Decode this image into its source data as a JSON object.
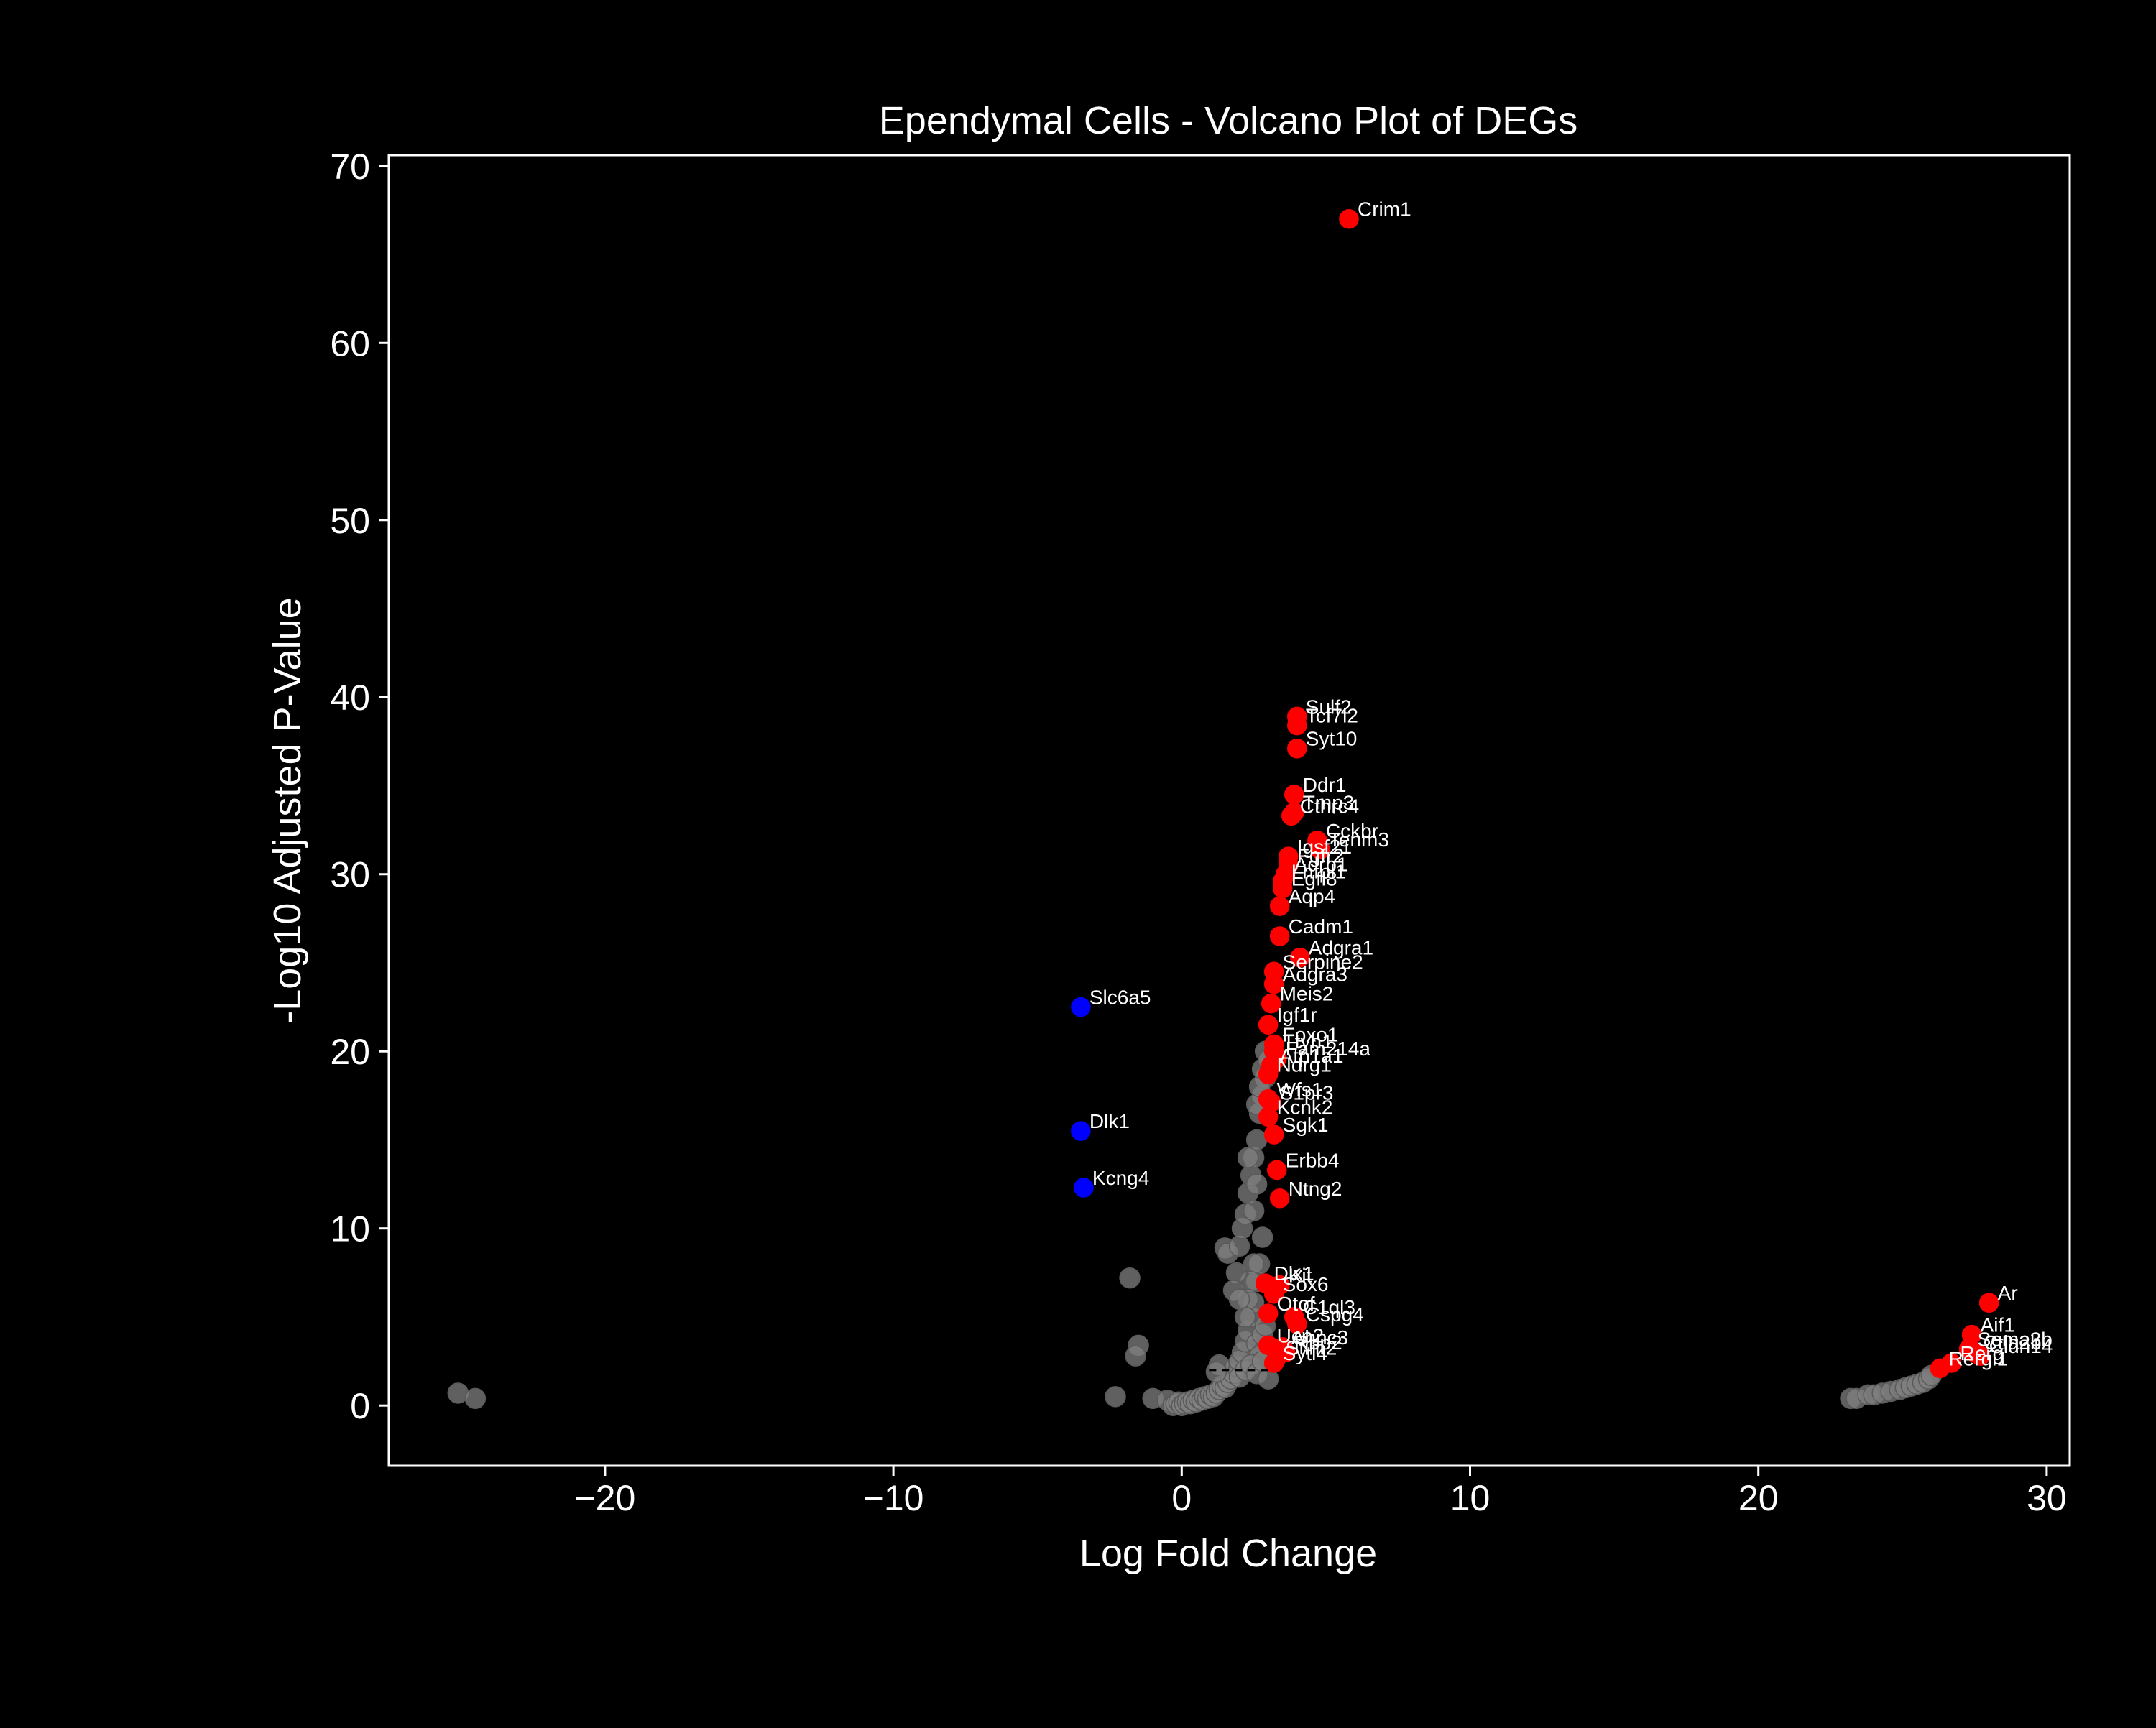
{
  "colors": {
    "background": "#000000",
    "axes": "#ffffff",
    "text": "#ffffff",
    "nonsignificant": "#808080",
    "upregulated": "#ff0000",
    "downregulated": "#0000ff",
    "threshold_line": "#000000"
  },
  "chart_data": {
    "type": "scatter",
    "title": "Ependymal Cells - Volcano Plot of DEGs",
    "xlabel": "Log Fold Change",
    "ylabel": "-Log10 Adjusted P-Value",
    "xlim": [
      -27.5,
      30.8
    ],
    "ylim": [
      -3.4,
      70.6
    ],
    "xticks": [
      -20,
      -10,
      0,
      10,
      20,
      30
    ],
    "xtick_labels": [
      "−20",
      "−10",
      "0",
      "10",
      "20",
      "30"
    ],
    "yticks": [
      0,
      10,
      20,
      30,
      40,
      50,
      60,
      70
    ],
    "ytick_labels": [
      "0",
      "10",
      "20",
      "30",
      "40",
      "50",
      "60",
      "70"
    ],
    "grid": false,
    "legend": "none",
    "threshold_line": {
      "x": [
        0.5,
        3.0
      ],
      "y": 2.0
    },
    "series": [
      {
        "category": "not significant",
        "color": "#808080",
        "points": [
          [
            -25.1,
            0.7
          ],
          [
            -24.5,
            0.4
          ],
          [
            -1.8,
            7.2
          ],
          [
            -1.5,
            3.4
          ],
          [
            -1.6,
            2.8
          ],
          [
            -2.3,
            0.5
          ],
          [
            -1.0,
            0.4
          ],
          [
            -0.5,
            0.3
          ],
          [
            -0.3,
            0.0
          ],
          [
            -0.2,
            0.1
          ],
          [
            -0.1,
            0.2
          ],
          [
            0.0,
            0.0
          ],
          [
            0.1,
            0.1
          ],
          [
            0.2,
            0.2
          ],
          [
            0.3,
            0.1
          ],
          [
            0.4,
            0.3
          ],
          [
            0.5,
            0.2
          ],
          [
            0.6,
            0.4
          ],
          [
            0.7,
            0.3
          ],
          [
            0.8,
            0.5
          ],
          [
            0.9,
            0.4
          ],
          [
            1.0,
            0.6
          ],
          [
            1.1,
            0.5
          ],
          [
            1.2,
            0.7
          ],
          [
            1.3,
            0.9
          ],
          [
            1.4,
            1.1
          ],
          [
            1.5,
            1.0
          ],
          [
            1.6,
            1.3
          ],
          [
            1.7,
            1.5
          ],
          [
            1.8,
            1.8
          ],
          [
            1.9,
            2.2
          ],
          [
            2.0,
            2.5
          ],
          [
            2.1,
            3.0
          ],
          [
            2.2,
            3.6
          ],
          [
            2.3,
            4.2
          ],
          [
            2.4,
            5.0
          ],
          [
            2.5,
            5.8
          ],
          [
            2.6,
            7.0
          ],
          [
            2.7,
            8.0
          ],
          [
            2.8,
            9.5
          ],
          [
            2.5,
            8.0
          ],
          [
            2.4,
            7.0
          ],
          [
            2.3,
            6.0
          ],
          [
            2.2,
            5.0
          ],
          [
            1.5,
            8.9
          ],
          [
            1.6,
            8.6
          ],
          [
            2.0,
            9.0
          ],
          [
            2.1,
            10.0
          ],
          [
            2.2,
            10.8
          ],
          [
            2.3,
            12.0
          ],
          [
            2.4,
            13.0
          ],
          [
            2.5,
            14.0
          ],
          [
            2.6,
            15.0
          ],
          [
            2.7,
            16.5
          ],
          [
            2.8,
            17.5
          ],
          [
            2.9,
            18.5
          ],
          [
            2.6,
            17.0
          ],
          [
            2.7,
            18.0
          ],
          [
            2.8,
            19.0
          ],
          [
            2.9,
            20.0
          ],
          [
            3.0,
            19.5
          ],
          [
            2.5,
            11.0
          ],
          [
            2.6,
            12.5
          ],
          [
            2.3,
            14.0
          ],
          [
            1.9,
            7.5
          ],
          [
            1.8,
            6.5
          ],
          [
            2.0,
            6.0
          ],
          [
            1.3,
            2.3
          ],
          [
            1.2,
            1.9
          ],
          [
            2.6,
            3.5
          ],
          [
            2.7,
            2.8
          ],
          [
            2.8,
            4.0
          ],
          [
            2.9,
            4.5
          ],
          [
            2.0,
            1.6
          ],
          [
            2.2,
            2.0
          ],
          [
            2.4,
            2.3
          ],
          [
            2.6,
            1.8
          ],
          [
            2.8,
            2.5
          ],
          [
            3.0,
            1.5
          ],
          [
            23.2,
            0.4
          ],
          [
            23.4,
            0.4
          ],
          [
            23.8,
            0.6
          ],
          [
            24.0,
            0.6
          ],
          [
            24.3,
            0.7
          ],
          [
            24.6,
            0.8
          ],
          [
            24.9,
            0.9
          ],
          [
            25.1,
            1.0
          ],
          [
            25.3,
            1.1
          ],
          [
            25.5,
            1.2
          ],
          [
            25.7,
            1.3
          ],
          [
            25.9,
            1.5
          ],
          [
            26.0,
            1.7
          ]
        ]
      },
      {
        "category": "upregulated",
        "color": "#ff0000",
        "points": [
          {
            "x": 5.8,
            "y": 67.0,
            "label": "Crim1"
          },
          {
            "x": 4.0,
            "y": 38.9,
            "label": "Sulf2"
          },
          {
            "x": 4.0,
            "y": 38.4,
            "label": "Tcf7l2"
          },
          {
            "x": 4.0,
            "y": 37.1,
            "label": "Syt10"
          },
          {
            "x": 3.9,
            "y": 34.5,
            "label": "Ddr1"
          },
          {
            "x": 3.9,
            "y": 33.5,
            "label": "Tmp3"
          },
          {
            "x": 3.8,
            "y": 33.3,
            "label": "Cthrc4"
          },
          {
            "x": 4.7,
            "y": 31.9,
            "label": "Cckbr"
          },
          {
            "x": 4.8,
            "y": 31.4,
            "label": "Tenm3"
          },
          {
            "x": 3.7,
            "y": 31.0,
            "label": "Igsf21"
          },
          {
            "x": 3.7,
            "y": 30.5,
            "label": "Fgfr2"
          },
          {
            "x": 3.6,
            "y": 30.0,
            "label": "Adrb1"
          },
          {
            "x": 3.5,
            "y": 29.6,
            "label": "Lhfpl1"
          },
          {
            "x": 3.5,
            "y": 29.2,
            "label": "Egfl8"
          },
          {
            "x": 3.4,
            "y": 28.2,
            "label": "Aqp4"
          },
          {
            "x": 3.4,
            "y": 26.5,
            "label": "Cadm1"
          },
          {
            "x": 4.1,
            "y": 25.3,
            "label": "Adgra1"
          },
          {
            "x": 3.2,
            "y": 24.5,
            "label": "Serpine2"
          },
          {
            "x": 3.2,
            "y": 23.8,
            "label": "Adgra3"
          },
          {
            "x": 3.1,
            "y": 22.7,
            "label": "Meis2"
          },
          {
            "x": 3.0,
            "y": 21.5,
            "label": "Igf1r"
          },
          {
            "x": 3.2,
            "y": 20.4,
            "label": "Foxo1"
          },
          {
            "x": 3.2,
            "y": 20.0,
            "label": "Ttyh1"
          },
          {
            "x": 3.3,
            "y": 19.6,
            "label": "Fam214a"
          },
          {
            "x": 3.1,
            "y": 19.2,
            "label": "Atp1a1"
          },
          {
            "x": 3.0,
            "y": 18.7,
            "label": "Ndrg1"
          },
          {
            "x": 3.0,
            "y": 17.3,
            "label": "Wfs1"
          },
          {
            "x": 3.1,
            "y": 17.1,
            "label": "S1pr3"
          },
          {
            "x": 3.0,
            "y": 16.3,
            "label": "Kcnk2"
          },
          {
            "x": 3.2,
            "y": 15.3,
            "label": "Sgk1"
          },
          {
            "x": 3.3,
            "y": 13.3,
            "label": "Erbb4"
          },
          {
            "x": 3.4,
            "y": 11.7,
            "label": "Ntng2"
          },
          {
            "x": 2.9,
            "y": 6.9,
            "label": "Dlx1"
          },
          {
            "x": 3.4,
            "y": 6.8,
            "label": "Kit"
          },
          {
            "x": 3.2,
            "y": 6.3,
            "label": "Sox6"
          },
          {
            "x": 3.0,
            "y": 5.2,
            "label": "Otof"
          },
          {
            "x": 3.9,
            "y": 5.0,
            "label": "C1ql3"
          },
          {
            "x": 4.0,
            "y": 4.6,
            "label": "Cspg4"
          },
          {
            "x": 3.0,
            "y": 3.4,
            "label": "Ucp2"
          },
          {
            "x": 3.5,
            "y": 3.3,
            "label": "Ahnc3"
          },
          {
            "x": 3.6,
            "y": 3.0,
            "label": "Rbp2"
          },
          {
            "x": 3.3,
            "y": 2.7,
            "label": "Stim2"
          },
          {
            "x": 3.2,
            "y": 2.4,
            "label": "Sytl4"
          },
          {
            "x": 28.0,
            "y": 5.8,
            "label": "Ar"
          },
          {
            "x": 27.4,
            "y": 4.0,
            "label": "Aif1"
          },
          {
            "x": 27.3,
            "y": 3.2,
            "label": "Sema3b"
          },
          {
            "x": 27.5,
            "y": 3.0,
            "label": "Ctla2b"
          },
          {
            "x": 27.7,
            "y": 2.8,
            "label": "Cldn14"
          },
          {
            "x": 26.7,
            "y": 2.4,
            "label": "Rerg"
          },
          {
            "x": 26.3,
            "y": 2.1,
            "label": "Rergl1"
          }
        ]
      },
      {
        "category": "downregulated",
        "color": "#0000ff",
        "points": [
          {
            "x": -3.5,
            "y": 22.5,
            "label": "Slc6a5"
          },
          {
            "x": -3.5,
            "y": 15.5,
            "label": "Dlk1"
          },
          {
            "x": -3.4,
            "y": 12.3,
            "label": "Kcng4"
          }
        ]
      }
    ]
  }
}
